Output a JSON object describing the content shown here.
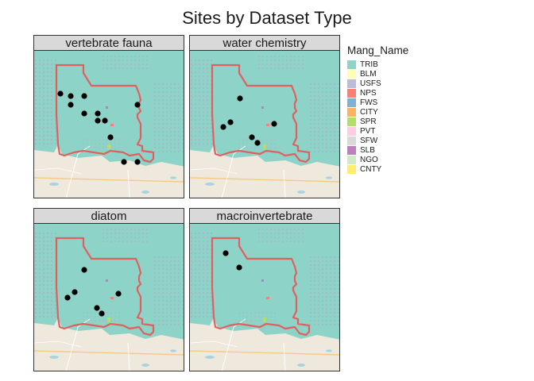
{
  "title": "Sites by Dataset Type",
  "legend": {
    "title": "Mang_Name",
    "items": [
      {
        "label": "TRIB",
        "color": "#8dd3c7"
      },
      {
        "label": "BLM",
        "color": "#ffffb3"
      },
      {
        "label": "USFS",
        "color": "#bebada"
      },
      {
        "label": "NPS",
        "color": "#fb8072"
      },
      {
        "label": "FWS",
        "color": "#80b1d3"
      },
      {
        "label": "CITY",
        "color": "#fdb462"
      },
      {
        "label": "SPR",
        "color": "#b3de69"
      },
      {
        "label": "PVT",
        "color": "#fccde5"
      },
      {
        "label": "SFW",
        "color": "#d9d9d9"
      },
      {
        "label": "SLB",
        "color": "#bc80bd"
      },
      {
        "label": "NGO",
        "color": "#ccebc5"
      },
      {
        "label": "CNTY",
        "color": "#ffed6f"
      }
    ]
  },
  "panels": [
    {
      "label": "vertebrate fauna"
    },
    {
      "label": "water chemistry"
    },
    {
      "label": "diatom"
    },
    {
      "label": "macroinvertebrate"
    }
  ]
}
